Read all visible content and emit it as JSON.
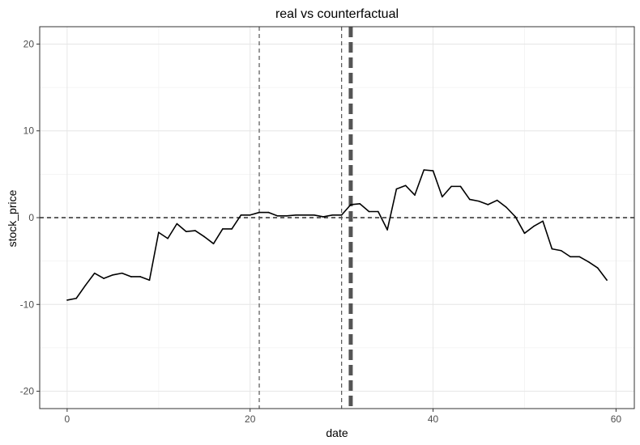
{
  "chart_data": {
    "type": "line",
    "title": "real vs counterfactual",
    "xlabel": "date",
    "ylabel": "stock_price",
    "xlim": [
      -3,
      62
    ],
    "ylim": [
      -22,
      22
    ],
    "x_ticks": [
      0,
      20,
      40,
      60
    ],
    "y_ticks": [
      -20,
      -10,
      0,
      10,
      20
    ],
    "x_tick_labels": [
      "0",
      "20",
      "40",
      "60"
    ],
    "y_tick_labels": [
      "-20",
      "-10",
      "0",
      "10",
      "20"
    ],
    "grid": true,
    "legend": "none",
    "series": [
      {
        "color": "#000000",
        "x": [
          0,
          1,
          2,
          3,
          4,
          5,
          6,
          7,
          8,
          9,
          10,
          11,
          12,
          13,
          14,
          15,
          16,
          17,
          18,
          19,
          20,
          21,
          22,
          23,
          24,
          25,
          26,
          27,
          28,
          29,
          30,
          31,
          32,
          33,
          34,
          35,
          36,
          37,
          38,
          39,
          40,
          41,
          42,
          43,
          44,
          45,
          46,
          47,
          48,
          49,
          50,
          51,
          52,
          53,
          54,
          55,
          56,
          57,
          58,
          59
        ],
        "y": [
          -9.5,
          -9.3,
          -7.8,
          -6.4,
          -7.0,
          -6.6,
          -6.4,
          -6.8,
          -6.8,
          -7.2,
          -1.7,
          -2.4,
          -0.7,
          -1.6,
          -1.5,
          -2.2,
          -3.0,
          -1.3,
          -1.3,
          0.3,
          0.3,
          0.6,
          0.6,
          0.2,
          0.2,
          0.3,
          0.3,
          0.3,
          0.1,
          0.3,
          0.3,
          1.5,
          1.6,
          0.7,
          0.7,
          -1.4,
          3.3,
          3.7,
          2.6,
          5.5,
          5.4,
          2.4,
          3.6,
          3.6,
          2.1,
          1.9,
          1.5,
          2.0,
          1.2,
          0.1,
          -1.8,
          -1.0,
          -0.4,
          -3.6,
          -3.8,
          -4.5,
          -4.5,
          -5.1,
          -5.8,
          -7.2
        ]
      }
    ],
    "reference_lines": [
      {
        "orientation": "horizontal",
        "value": 0,
        "style": "dashed",
        "color": "#000000"
      },
      {
        "orientation": "vertical",
        "value": 21,
        "style": "dashed",
        "color": "#555555"
      },
      {
        "orientation": "vertical",
        "value": 30,
        "style": "dashed",
        "color": "#555555"
      },
      {
        "orientation": "vertical",
        "value": 31,
        "style": "dashed-thick",
        "color": "#555555"
      }
    ],
    "colors": {
      "background": "#ffffff",
      "panel_border": "#333333",
      "grid_major": "#e6e6e6",
      "grid_minor": "#f2f2f2",
      "tick_text": "#4d4d4d"
    }
  }
}
